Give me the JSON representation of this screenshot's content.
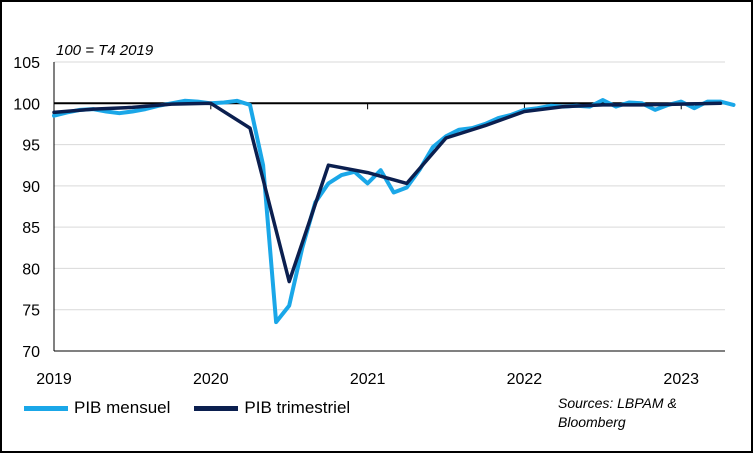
{
  "chart_data": {
    "type": "line",
    "title": "",
    "ylabel": "",
    "xlabel": "",
    "base_note": "100 = T4 2019",
    "ylim": [
      70,
      105
    ],
    "yticks": [
      70,
      75,
      80,
      85,
      90,
      95,
      100,
      105
    ],
    "xlim": [
      "2019-01",
      "2023-04"
    ],
    "xticks": [
      "2019",
      "2020",
      "2021",
      "2022",
      "2023"
    ],
    "reference_line": 100,
    "grid": "horizontal",
    "legend_position": "bottom-left",
    "series": [
      {
        "name": "PIB mensuel",
        "color": "#1aa7e8",
        "points": [
          [
            "2019-01",
            98.5
          ],
          [
            "2019-02",
            98.9
          ],
          [
            "2019-03",
            99.2
          ],
          [
            "2019-04",
            99.3
          ],
          [
            "2019-05",
            99.0
          ],
          [
            "2019-06",
            98.8
          ],
          [
            "2019-07",
            99.0
          ],
          [
            "2019-08",
            99.3
          ],
          [
            "2019-09",
            99.7
          ],
          [
            "2019-10",
            100.0
          ],
          [
            "2019-11",
            100.3
          ],
          [
            "2019-12",
            100.2
          ],
          [
            "2020-01",
            100.0
          ],
          [
            "2020-02",
            100.1
          ],
          [
            "2020-03",
            100.3
          ],
          [
            "2020-04",
            99.8
          ],
          [
            "2020-05",
            92.5
          ],
          [
            "2020-06",
            73.5
          ],
          [
            "2020-07",
            75.5
          ],
          [
            "2020-08",
            82.5
          ],
          [
            "2020-09",
            88.0
          ],
          [
            "2020-10",
            90.3
          ],
          [
            "2020-11",
            91.3
          ],
          [
            "2020-12",
            91.7
          ],
          [
            "2021-01",
            90.3
          ],
          [
            "2021-02",
            91.9
          ],
          [
            "2021-03",
            89.2
          ],
          [
            "2021-04",
            89.8
          ],
          [
            "2021-05",
            92.0
          ],
          [
            "2021-06",
            94.7
          ],
          [
            "2021-07",
            96.0
          ],
          [
            "2021-08",
            96.8
          ],
          [
            "2021-09",
            97.0
          ],
          [
            "2021-10",
            97.5
          ],
          [
            "2021-11",
            98.2
          ],
          [
            "2021-12",
            98.6
          ],
          [
            "2022-01",
            99.2
          ],
          [
            "2022-02",
            99.4
          ],
          [
            "2022-03",
            99.7
          ],
          [
            "2022-04",
            99.6
          ],
          [
            "2022-05",
            99.7
          ],
          [
            "2022-06",
            99.6
          ],
          [
            "2022-07",
            100.4
          ],
          [
            "2022-08",
            99.6
          ],
          [
            "2022-09",
            100.1
          ],
          [
            "2022-10",
            100.0
          ],
          [
            "2022-11",
            99.2
          ],
          [
            "2022-12",
            99.8
          ],
          [
            "2023-01",
            100.2
          ],
          [
            "2023-02",
            99.4
          ],
          [
            "2023-03",
            100.2
          ],
          [
            "2023-04",
            100.2
          ],
          [
            "2023-05",
            99.8
          ]
        ]
      },
      {
        "name": "PIB trimestriel",
        "color": "#0b1f4f",
        "points": [
          [
            "2019-01",
            98.9
          ],
          [
            "2019-04",
            99.3
          ],
          [
            "2019-07",
            99.5
          ],
          [
            "2019-10",
            99.9
          ],
          [
            "2020-01",
            100.0
          ],
          [
            "2020-04",
            97.0
          ],
          [
            "2020-07",
            78.4
          ],
          [
            "2020-10",
            92.5
          ],
          [
            "2021-01",
            91.6
          ],
          [
            "2021-04",
            90.3
          ],
          [
            "2021-07",
            95.8
          ],
          [
            "2021-10",
            97.3
          ],
          [
            "2022-01",
            99.0
          ],
          [
            "2022-04",
            99.6
          ],
          [
            "2022-07",
            99.8
          ],
          [
            "2022-10",
            99.8
          ],
          [
            "2023-01",
            99.9
          ],
          [
            "2023-04",
            100.0
          ]
        ]
      }
    ],
    "sources_note": "Sources: LBPAM & Bloomberg"
  },
  "legend": {
    "items": [
      {
        "label": "PIB mensuel",
        "color": "#1aa7e8"
      },
      {
        "label": "PIB trimestriel",
        "color": "#0b1f4f"
      }
    ]
  }
}
